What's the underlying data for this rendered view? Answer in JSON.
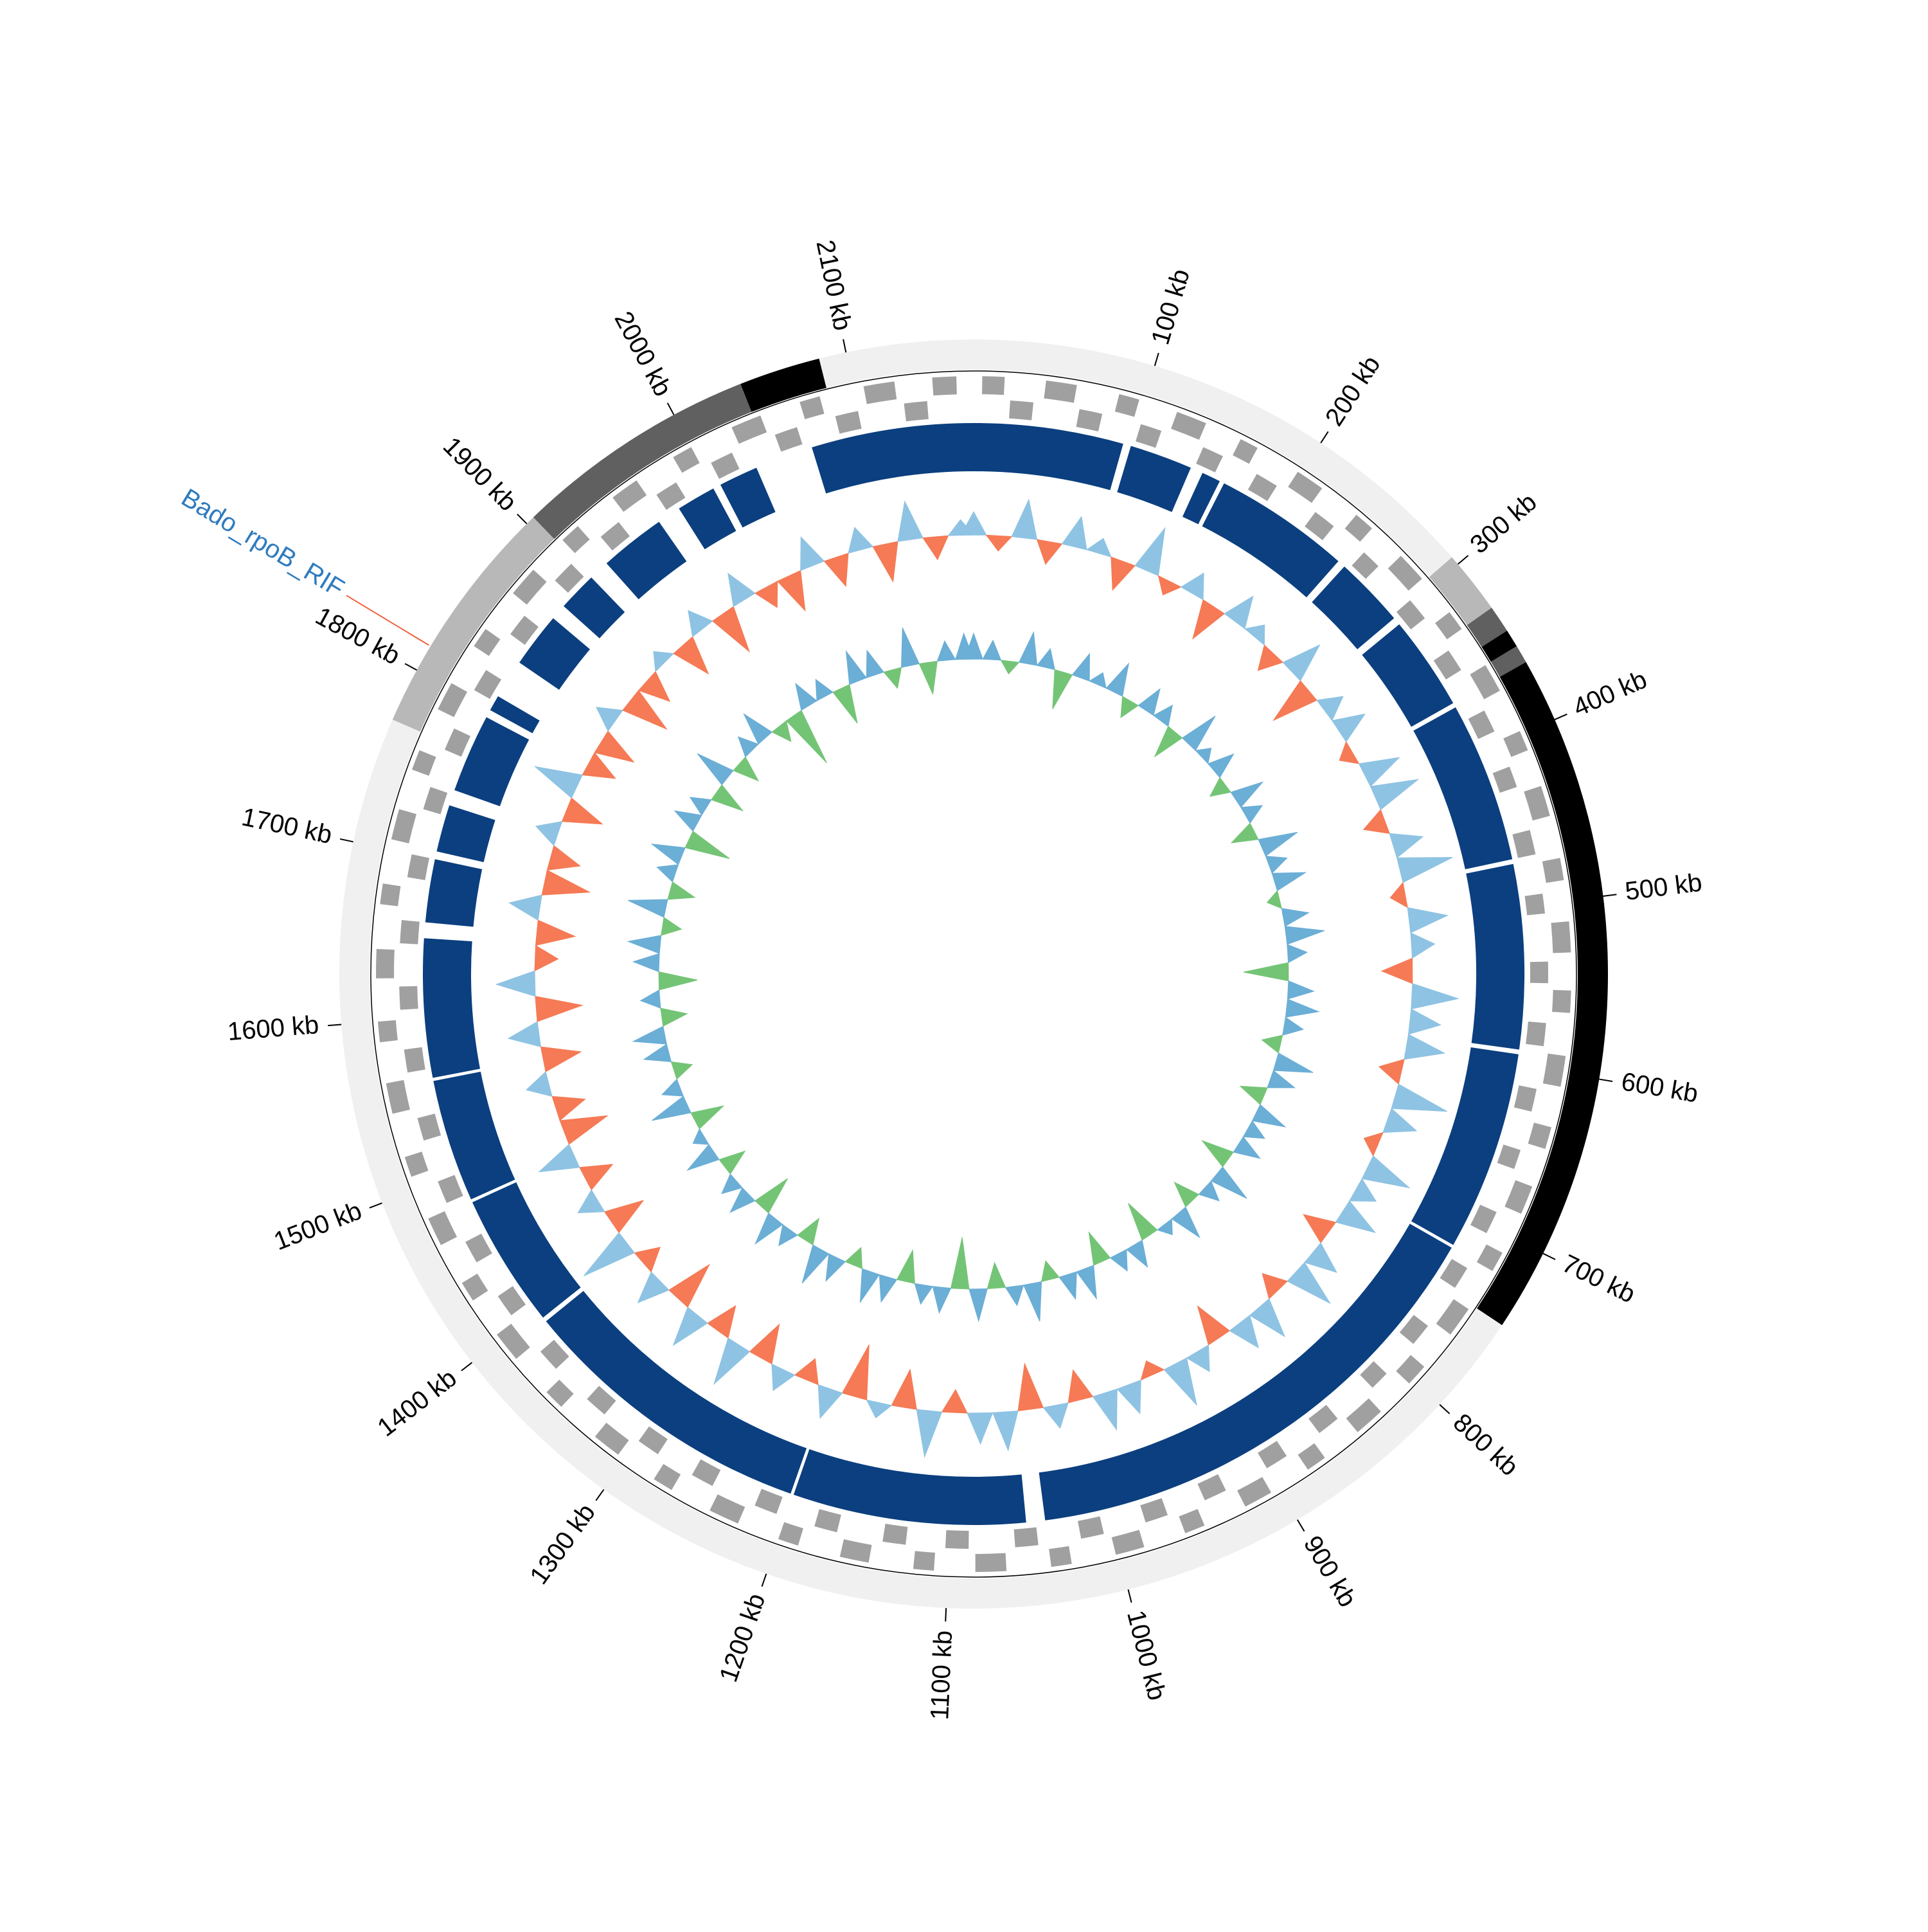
{
  "chart_data": {
    "type": "circos",
    "xlim": [
      0,
      2170
    ],
    "xticks": [
      {
        "value": 100,
        "label": "100 kb"
      },
      {
        "value": 200,
        "label": "200 kb"
      },
      {
        "value": 300,
        "label": "300 kb"
      },
      {
        "value": 400,
        "label": "400 kb"
      },
      {
        "value": 500,
        "label": "500 kb"
      },
      {
        "value": 600,
        "label": "600 kb"
      },
      {
        "value": 700,
        "label": "700 kb"
      },
      {
        "value": 800,
        "label": "800 kb"
      },
      {
        "value": 900,
        "label": "900 kb"
      },
      {
        "value": 1000,
        "label": "1000 kb"
      },
      {
        "value": 1100,
        "label": "1100 kb"
      },
      {
        "value": 1200,
        "label": "1200 kb"
      },
      {
        "value": 1300,
        "label": "1300 kb"
      },
      {
        "value": 1400,
        "label": "1400 kb"
      },
      {
        "value": 1500,
        "label": "1500 kb"
      },
      {
        "value": 1600,
        "label": "1600 kb"
      },
      {
        "value": 1700,
        "label": "1700 kb"
      },
      {
        "value": 1800,
        "label": "1800 kb"
      },
      {
        "value": 1900,
        "label": "1900 kb"
      },
      {
        "value": 2000,
        "label": "2000 kb"
      },
      {
        "value": 2100,
        "label": "2100 kb"
      }
    ],
    "regions": [
      {
        "start": 0,
        "end": 295,
        "color": "#f0f0f0"
      },
      {
        "start": 295,
        "end": 330,
        "color": "#b8b8b8"
      },
      {
        "start": 330,
        "end": 345,
        "color": "#606060"
      },
      {
        "start": 345,
        "end": 355,
        "color": "#000000"
      },
      {
        "start": 355,
        "end": 365,
        "color": "#606060"
      },
      {
        "start": 365,
        "end": 745,
        "color": "#000000"
      },
      {
        "start": 745,
        "end": 1770,
        "color": "#f0f0f0"
      },
      {
        "start": 1770,
        "end": 1905,
        "color": "#b8b8b8"
      },
      {
        "start": 1905,
        "end": 2040,
        "color": "#606060"
      },
      {
        "start": 2040,
        "end": 2085,
        "color": "#000000"
      },
      {
        "start": 2085,
        "end": 2170,
        "color": "#f0f0f0"
      }
    ],
    "genes": {
      "color": "#a0a0a0",
      "plus": [
        [
          5,
          18
        ],
        [
          42,
          60
        ],
        [
          85,
          97
        ],
        [
          120,
          138
        ],
        [
          160,
          171
        ],
        [
          198,
          215
        ],
        [
          240,
          252
        ],
        [
          275,
          293
        ],
        [
          318,
          330
        ],
        [
          355,
          372
        ],
        [
          398,
          410
        ],
        [
          432,
          450
        ],
        [
          475,
          488
        ],
        [
          512,
          530
        ],
        [
          552,
          565
        ],
        [
          590,
          608
        ],
        [
          632,
          645
        ],
        [
          668,
          685
        ],
        [
          710,
          722
        ],
        [
          748,
          766
        ],
        [
          790,
          803
        ],
        [
          826,
          844
        ],
        [
          868,
          880
        ],
        [
          905,
          922
        ],
        [
          948,
          960
        ],
        [
          985,
          1002
        ],
        [
          1028,
          1040
        ],
        [
          1066,
          1084
        ],
        [
          1108,
          1120
        ],
        [
          1146,
          1163
        ],
        [
          1188,
          1200
        ],
        [
          1225,
          1243
        ],
        [
          1268,
          1280
        ],
        [
          1305,
          1322
        ],
        [
          1348,
          1360
        ],
        [
          1386,
          1404
        ],
        [
          1428,
          1440
        ],
        [
          1465,
          1482
        ],
        [
          1508,
          1520
        ],
        [
          1546,
          1564
        ],
        [
          1588,
          1600
        ],
        [
          1625,
          1642
        ],
        [
          1668,
          1680
        ],
        [
          1706,
          1724
        ],
        [
          1748,
          1760
        ],
        [
          1786,
          1803
        ],
        [
          1828,
          1840
        ],
        [
          1866,
          1884
        ],
        [
          1908,
          1920
        ],
        [
          1946,
          1963
        ],
        [
          1988,
          2000
        ],
        [
          2026,
          2044
        ],
        [
          2068,
          2080
        ],
        [
          2106,
          2124
        ],
        [
          2146,
          2160
        ]
      ],
      "minus": [
        [
          22,
          36
        ],
        [
          64,
          78
        ],
        [
          102,
          115
        ],
        [
          142,
          155
        ],
        [
          178,
          192
        ],
        [
          220,
          234
        ],
        [
          258,
          270
        ],
        [
          298,
          312
        ],
        [
          336,
          350
        ],
        [
          378,
          392
        ],
        [
          415,
          428
        ],
        [
          455,
          470
        ],
        [
          494,
          506
        ],
        [
          535,
          548
        ],
        [
          572,
          586
        ],
        [
          612,
          626
        ],
        [
          650,
          662
        ],
        [
          690,
          704
        ],
        [
          728,
          742
        ],
        [
          770,
          784
        ],
        [
          808,
          820
        ],
        [
          848,
          862
        ],
        [
          886,
          900
        ],
        [
          928,
          942
        ],
        [
          966,
          980
        ],
        [
          1006,
          1020
        ],
        [
          1046,
          1060
        ],
        [
          1088,
          1102
        ],
        [
          1126,
          1140
        ],
        [
          1168,
          1182
        ],
        [
          1206,
          1220
        ],
        [
          1248,
          1262
        ],
        [
          1286,
          1300
        ],
        [
          1326,
          1340
        ],
        [
          1366,
          1380
        ],
        [
          1408,
          1422
        ],
        [
          1446,
          1460
        ],
        [
          1486,
          1500
        ],
        [
          1526,
          1540
        ],
        [
          1568,
          1582
        ],
        [
          1606,
          1620
        ],
        [
          1646,
          1660
        ],
        [
          1686,
          1700
        ],
        [
          1728,
          1742
        ],
        [
          1766,
          1780
        ],
        [
          1806,
          1820
        ],
        [
          1846,
          1860
        ],
        [
          1888,
          1902
        ],
        [
          1926,
          1940
        ],
        [
          1968,
          1982
        ],
        [
          2006,
          2020
        ],
        [
          2048,
          2062
        ],
        [
          2086,
          2100
        ],
        [
          2128,
          2142
        ]
      ]
    },
    "blocks": {
      "color": "#0b3f7f",
      "values": [
        [
          2067,
          2170
        ],
        [
          0,
          95
        ],
        [
          100,
          140
        ],
        [
          148,
          160
        ],
        [
          163,
          250
        ],
        [
          255,
          300
        ],
        [
          305,
          365
        ],
        [
          368,
          470
        ],
        [
          473,
          590
        ],
        [
          593,
          720
        ],
        [
          722,
          1040
        ],
        [
          1052,
          1200
        ],
        [
          1202,
          1392
        ],
        [
          1395,
          1480
        ],
        [
          1482,
          1560
        ],
        [
          1562,
          1650
        ],
        [
          1660,
          1700
        ],
        [
          1705,
          1735
        ],
        [
          1745,
          1795
        ],
        [
          1800,
          1810
        ],
        [
          1835,
          1870
        ],
        [
          1880,
          1905
        ],
        [
          1918,
          1960
        ],
        [
          1975,
          2000
        ],
        [
          2005,
          2030
        ]
      ]
    },
    "x": [
      0,
      20,
      40,
      60,
      80,
      100,
      120,
      140,
      160,
      180,
      200,
      220,
      240,
      260,
      280,
      300,
      320,
      340,
      360,
      380,
      400,
      420,
      440,
      460,
      480,
      500,
      520,
      540,
      560,
      580,
      600,
      620,
      640,
      660,
      680,
      700,
      720,
      740,
      760,
      780,
      800,
      820,
      840,
      860,
      880,
      900,
      920,
      940,
      960,
      980,
      1000,
      1020,
      1040,
      1060,
      1080,
      1100,
      1120,
      1140,
      1160,
      1180,
      1200,
      1220,
      1240,
      1260,
      1280,
      1300,
      1320,
      1340,
      1360,
      1380,
      1400,
      1420,
      1440,
      1460,
      1480,
      1500,
      1520,
      1540,
      1560,
      1580,
      1600,
      1620,
      1640,
      1660,
      1680,
      1700,
      1720,
      1740,
      1760,
      1780,
      1800,
      1820,
      1840,
      1860,
      1880,
      1900,
      1920,
      1940,
      1960,
      1980,
      2000,
      2020,
      2040,
      2060,
      2080,
      2100,
      2120,
      2140,
      2160
    ],
    "ylim": [
      -1,
      1
    ],
    "gc_content": {
      "colors": [
        "#8ec3e3",
        "#f57a55"
      ],
      "values": [
        0.3,
        -0.2,
        0.5,
        -0.3,
        0.4,
        0.2,
        -0.4,
        0.6,
        -0.2,
        0.3,
        -0.5,
        0.4,
        0.2,
        -0.3,
        0.5,
        -0.6,
        0.3,
        0.4,
        -0.2,
        0.5,
        0.6,
        -0.3,
        0.4,
        0.7,
        -0.2,
        0.5,
        0.3,
        -0.4,
        0.6,
        0.4,
        0.5,
        -0.3,
        0.7,
        0.4,
        -0.2,
        0.6,
        0.3,
        0.5,
        -0.4,
        0.4,
        0.6,
        -0.3,
        0.5,
        0.4,
        -0.5,
        0.3,
        0.6,
        -0.2,
        0.4,
        0.5,
        -0.4,
        0.3,
        -0.6,
        0.5,
        0.4,
        -0.3,
        0.6,
        -0.5,
        0.2,
        -0.7,
        0.4,
        -0.3,
        0.3,
        -0.5,
        0.6,
        -0.4,
        0.5,
        -0.6,
        0.4,
        -0.3,
        0.7,
        -0.5,
        0.3,
        -0.4,
        0.5,
        -0.6,
        -0.4,
        0.3,
        -0.5,
        0.4,
        -0.6,
        0.5,
        -0.3,
        -0.5,
        0.4,
        -0.6,
        -0.4,
        0.3,
        -0.5,
        0.6,
        -0.4,
        -0.5,
        0.3,
        -0.6,
        -0.4,
        0.2,
        -0.5,
        0.3,
        -0.6,
        0.4,
        -0.3,
        -0.5,
        0.4,
        -0.4,
        0.3,
        -0.5,
        0.5,
        -0.3,
        0.2
      ]
    },
    "gc_skew": {
      "colors": [
        "#6baed6",
        "#74c476"
      ],
      "values": [
        0.4,
        0.3,
        -0.2,
        0.5,
        0.3,
        -0.6,
        0.4,
        0.2,
        0.5,
        -0.3,
        0.4,
        0.3,
        -0.5,
        0.6,
        0.2,
        0.4,
        -0.3,
        0.5,
        0.3,
        -0.4,
        0.6,
        0.3,
        0.5,
        -0.2,
        0.4,
        0.6,
        0.3,
        -0.7,
        0.4,
        0.5,
        0.3,
        -0.3,
        0.6,
        0.4,
        -0.4,
        0.5,
        0.3,
        0.4,
        -0.5,
        0.6,
        0.3,
        -0.4,
        0.5,
        0.2,
        -0.6,
        0.4,
        0.3,
        -0.5,
        0.5,
        0.4,
        -0.3,
        0.6,
        0.3,
        -0.4,
        0.5,
        -0.8,
        0.4,
        0.3,
        -0.5,
        0.4,
        0.5,
        -0.3,
        0.4,
        0.6,
        -0.4,
        0.3,
        0.5,
        -0.6,
        0.4,
        0.3,
        -0.4,
        0.5,
        0.2,
        -0.5,
        0.6,
        0.3,
        -0.3,
        0.4,
        0.5,
        -0.4,
        0.3,
        -0.6,
        0.4,
        0.5,
        -0.3,
        0.6,
        -0.4,
        0.3,
        0.5,
        -0.7,
        0.4,
        0.3,
        -0.5,
        0.6,
        -0.4,
        0.3,
        0.5,
        -0.3,
        -0.9,
        0.4,
        0.3,
        -0.6,
        0.5,
        0.4,
        -0.3,
        0.6,
        -0.5,
        0.3,
        0.4
      ]
    },
    "annotation": {
      "text": "Bado_rpoB_RIF",
      "position": 1815,
      "color": "#2f7bbf",
      "line_color": "#f0603c"
    }
  }
}
